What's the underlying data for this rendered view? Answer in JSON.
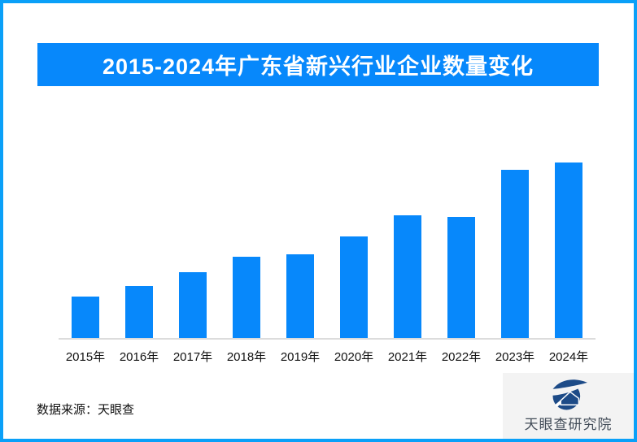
{
  "page": {
    "border_color": "#0aa0f8",
    "background_color": "#ffffff"
  },
  "header": {
    "title": "2015-2024年广东省新兴行业企业数量变化",
    "banner_color": "#0788fb",
    "title_color": "#ffffff"
  },
  "chart_data": {
    "type": "bar",
    "title": "2015-2024年广东省新兴行业企业数量变化",
    "categories": [
      "2015年",
      "2016年",
      "2017年",
      "2018年",
      "2019年",
      "2020年",
      "2021年",
      "2022年",
      "2023年",
      "2024年"
    ],
    "values": [
      51,
      64,
      81,
      100,
      103,
      125,
      151,
      149,
      207,
      216
    ],
    "units": "relative (no numeric axis or data labels shown)",
    "xlabel": "",
    "ylabel": "",
    "ylim": [
      0,
      270
    ],
    "grid": false,
    "legend": false,
    "bar_color": "#0788fb",
    "axis_line_color": "#dcdcdc",
    "tick_label_color": "#111111"
  },
  "footer": {
    "source_label": "数据来源：天眼查"
  },
  "logo": {
    "label": "天眼查研究院",
    "icon": "tianyancha-eye-icon",
    "panel_color": "#f3f3f3",
    "text_color": "#414b57",
    "icon_color": "#1d4b87"
  }
}
